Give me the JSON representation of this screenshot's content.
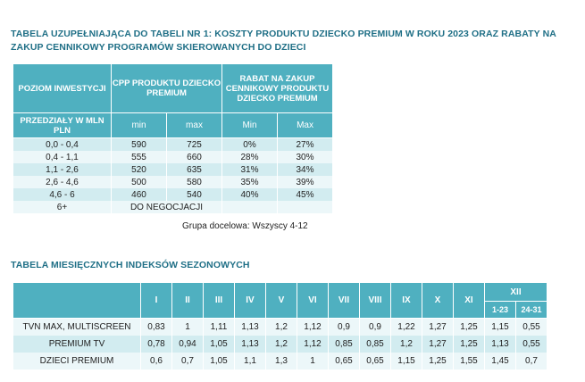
{
  "table1": {
    "title": "TABELA UZUPEŁNIAJĄCA DO TABELI NR 1: KOSZTY PRODUKTU DZIECKO PREMIUM W ROKU 2023 ORAZ RABATY NA ZAKUP CENNIKOWY PROGRAMÓW SKIEROWANYCH DO DZIECI",
    "headers": {
      "poziom": "POZIOM INWESTYCJI",
      "cpp": "CPP PRODUKTU DZIECKO PREMIUM",
      "rabat": "RABAT NA ZAKUP CENNIKOWY PRODUKTU DZIECKO PREMIUM",
      "przedzialy": "PRZEDZIAŁY W MLN PLN",
      "min": "min",
      "max": "max",
      "min2": "Min",
      "max2": "Max"
    },
    "rows": [
      {
        "range": "0,0 - 0,4",
        "cpp_min": "590",
        "cpp_max": "725",
        "rabat_min": "0%",
        "rabat_max": "27%"
      },
      {
        "range": "0,4 - 1,1",
        "cpp_min": "555",
        "cpp_max": "660",
        "rabat_min": "28%",
        "rabat_max": "30%"
      },
      {
        "range": "1,1 - 2,6",
        "cpp_min": "520",
        "cpp_max": "635",
        "rabat_min": "31%",
        "rabat_max": "34%"
      },
      {
        "range": "2,6 - 4,6",
        "cpp_min": "500",
        "cpp_max": "580",
        "rabat_min": "35%",
        "rabat_max": "39%"
      },
      {
        "range": "4,6 - 6",
        "cpp_min": "460",
        "cpp_max": "540",
        "rabat_min": "40%",
        "rabat_max": "45%"
      }
    ],
    "last_row": {
      "range": "6+",
      "text": "DO NEGOCJACJI"
    },
    "note": "Grupa docelowa: Wszyscy 4-12"
  },
  "table2": {
    "title": "TABELA MIESIĘCZNYCH INDEKSÓW SEZONOWYCH",
    "months": [
      "I",
      "II",
      "III",
      "IV",
      "V",
      "VI",
      "VII",
      "VIII",
      "IX",
      "X",
      "XI"
    ],
    "december": {
      "label": "XII",
      "sub": [
        "1-23",
        "24-31"
      ]
    },
    "rows": [
      {
        "label": "TVN MAX, MULTISCREEN",
        "values": [
          "0,83",
          "1",
          "1,11",
          "1,13",
          "1,2",
          "1,12",
          "0,9",
          "0,9",
          "1,22",
          "1,27",
          "1,25",
          "1,15",
          "0,55"
        ]
      },
      {
        "label": "PREMIUM TV",
        "values": [
          "0,78",
          "0,94",
          "1,05",
          "1,13",
          "1,2",
          "1,12",
          "0,85",
          "0,85",
          "1,2",
          "1,27",
          "1,25",
          "1,13",
          "0,55"
        ]
      },
      {
        "label": "DZIECI PREMIUM",
        "values": [
          "0,6",
          "0,7",
          "1,05",
          "1,1",
          "1,3",
          "1",
          "0,65",
          "0,65",
          "1,15",
          "1,25",
          "1,55",
          "1,45",
          "0,7"
        ]
      }
    ]
  }
}
